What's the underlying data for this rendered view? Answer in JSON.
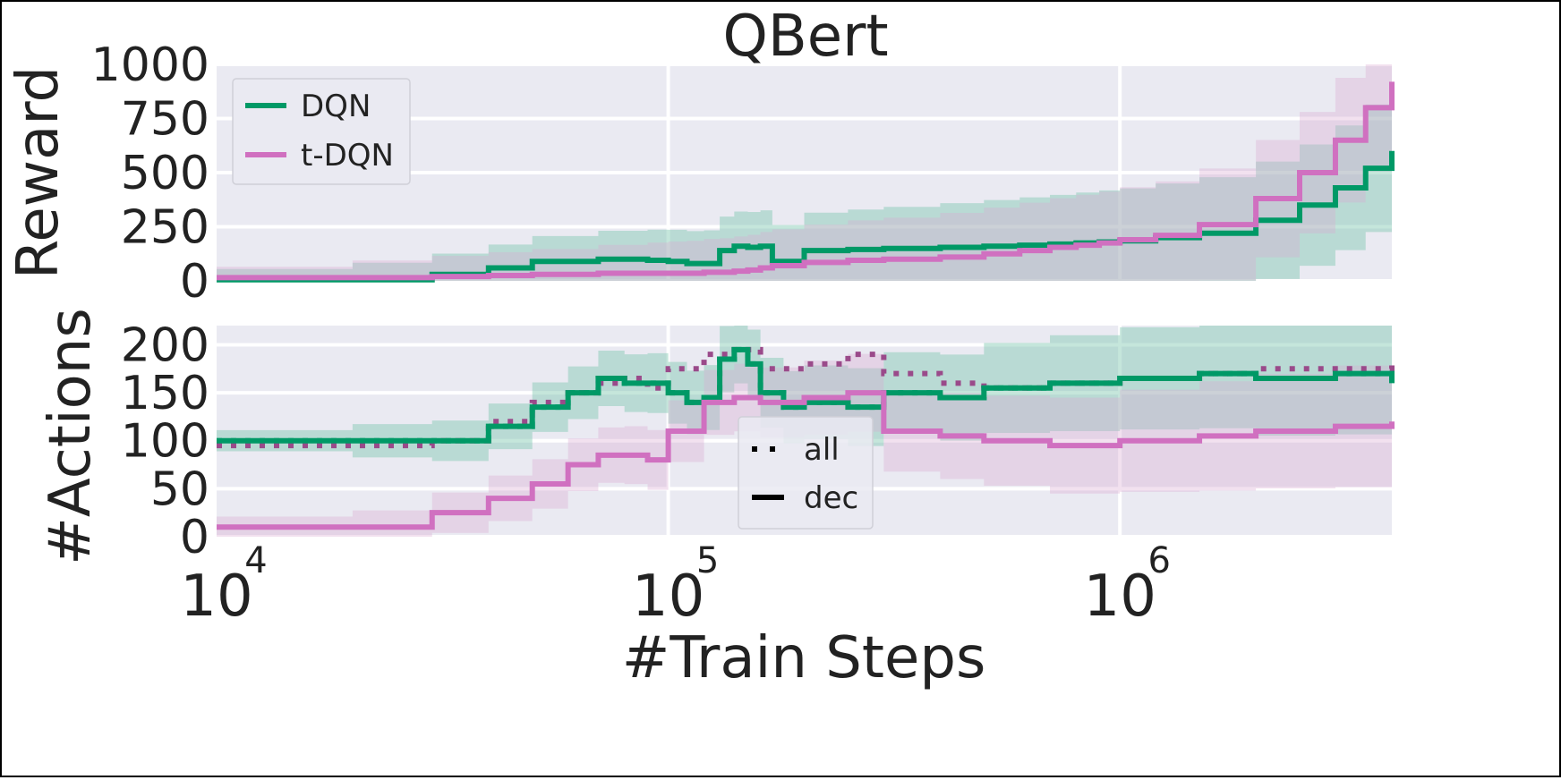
{
  "chart_data": [
    {
      "type": "line",
      "title": "QBert",
      "ylabel": "Reward",
      "xscale": "log",
      "xlim": [
        10000,
        4000000
      ],
      "ylim": [
        0,
        1000
      ],
      "yticks": [
        "0",
        "250",
        "500",
        "750",
        "1000"
      ],
      "grid": true,
      "legend": {
        "placement": "top-left"
      },
      "series": [
        {
          "name": "DQN",
          "color": "#009966",
          "x": [
            10000,
            20000,
            30000,
            40000,
            50000,
            70000,
            90000,
            100000,
            110000,
            120000,
            130000,
            140000,
            150000,
            160000,
            170000,
            200000,
            250000,
            300000,
            400000,
            500000,
            600000,
            700000,
            800000,
            900000,
            1000000,
            1200000,
            1500000,
            2000000,
            2500000,
            3000000,
            3500000,
            4000000
          ],
          "y": [
            5,
            5,
            30,
            60,
            90,
            100,
            95,
            90,
            80,
            80,
            140,
            160,
            155,
            160,
            90,
            140,
            145,
            150,
            155,
            160,
            165,
            170,
            175,
            180,
            185,
            200,
            220,
            280,
            350,
            430,
            520,
            600
          ]
        },
        {
          "name": "t-DQN",
          "color": "#d070c0",
          "x": [
            10000,
            20000,
            30000,
            40000,
            50000,
            70000,
            90000,
            100000,
            110000,
            120000,
            130000,
            140000,
            150000,
            160000,
            170000,
            200000,
            250000,
            300000,
            400000,
            500000,
            600000,
            700000,
            800000,
            900000,
            1000000,
            1200000,
            1500000,
            2000000,
            2500000,
            3000000,
            3500000,
            4000000
          ],
          "y": [
            15,
            15,
            20,
            25,
            30,
            35,
            35,
            35,
            35,
            40,
            40,
            45,
            50,
            60,
            70,
            85,
            95,
            100,
            110,
            125,
            140,
            155,
            165,
            175,
            190,
            210,
            260,
            380,
            500,
            650,
            800,
            920
          ]
        }
      ]
    },
    {
      "type": "line",
      "title": "",
      "xlabel": "#Train Steps",
      "ylabel": "#Actions",
      "xscale": "log",
      "xlim": [
        10000,
        4000000
      ],
      "ylim": [
        0,
        220
      ],
      "yticks": [
        "0",
        "50",
        "100",
        "150",
        "200"
      ],
      "xticks": [
        {
          "value": 10000,
          "base": "10",
          "exp": "4"
        },
        {
          "value": 100000,
          "base": "10",
          "exp": "5"
        },
        {
          "value": 1000000,
          "base": "10",
          "exp": "6"
        }
      ],
      "grid": true,
      "legend": {
        "placement": "lower-center",
        "entries": [
          {
            "label": "all",
            "style": "dotted"
          },
          {
            "label": "dec",
            "style": "solid"
          }
        ]
      },
      "series": [
        {
          "name": "DQN all",
          "color": "#009966",
          "style": "dotted",
          "x": [
            10000,
            20000,
            30000,
            40000,
            50000,
            60000,
            70000,
            80000,
            90000,
            100000,
            110000,
            120000,
            130000,
            140000,
            150000,
            160000,
            180000,
            200000,
            250000,
            300000,
            400000,
            500000,
            700000,
            1000000,
            1500000,
            2000000,
            3000000,
            4000000
          ],
          "y": [
            100,
            100,
            100,
            115,
            135,
            150,
            165,
            160,
            160,
            150,
            140,
            145,
            185,
            195,
            180,
            150,
            135,
            140,
            135,
            150,
            145,
            155,
            160,
            165,
            170,
            165,
            170,
            160
          ]
        },
        {
          "name": "t-DQN all",
          "color": "#9a4a8a",
          "style": "dotted",
          "x": [
            10000,
            20000,
            30000,
            40000,
            50000,
            60000,
            70000,
            80000,
            90000,
            100000,
            120000,
            140000,
            160000,
            200000,
            250000,
            300000,
            400000,
            500000,
            700000,
            1000000,
            1500000,
            2000000,
            3000000,
            4000000
          ],
          "y": [
            95,
            95,
            100,
            120,
            140,
            150,
            160,
            165,
            155,
            175,
            190,
            195,
            175,
            180,
            190,
            170,
            160,
            155,
            160,
            165,
            170,
            175,
            175,
            180
          ]
        },
        {
          "name": "DQN dec",
          "color": "#009966",
          "style": "solid",
          "x": [
            10000,
            20000,
            30000,
            40000,
            50000,
            60000,
            70000,
            80000,
            90000,
            100000,
            110000,
            120000,
            130000,
            140000,
            150000,
            160000,
            180000,
            200000,
            250000,
            300000,
            400000,
            500000,
            700000,
            1000000,
            1500000,
            2000000,
            3000000,
            4000000
          ],
          "y": [
            100,
            100,
            100,
            115,
            135,
            150,
            165,
            160,
            160,
            150,
            140,
            145,
            185,
            195,
            180,
            150,
            135,
            140,
            135,
            150,
            145,
            155,
            160,
            165,
            170,
            165,
            170,
            160
          ]
        },
        {
          "name": "t-DQN dec",
          "color": "#d070c0",
          "style": "solid",
          "x": [
            10000,
            20000,
            30000,
            40000,
            50000,
            60000,
            70000,
            80000,
            90000,
            100000,
            120000,
            140000,
            160000,
            200000,
            250000,
            300000,
            400000,
            500000,
            700000,
            1000000,
            1500000,
            2000000,
            3000000,
            4000000
          ],
          "y": [
            10,
            10,
            25,
            40,
            55,
            75,
            85,
            85,
            80,
            110,
            140,
            145,
            140,
            145,
            150,
            110,
            105,
            100,
            95,
            100,
            105,
            110,
            115,
            120
          ]
        }
      ]
    }
  ]
}
